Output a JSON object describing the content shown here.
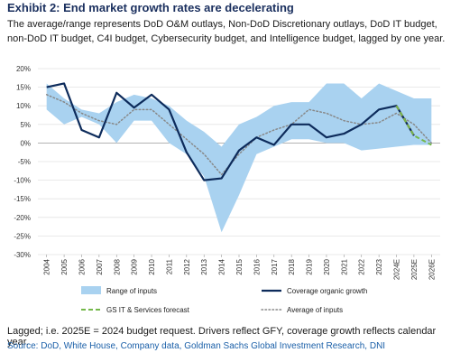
{
  "exhibit": {
    "title": "Exhibit 2: End market growth rates are decelerating",
    "subtitle": "The average/range represents DoD O&M outlays, Non-DoD Discretionary outlays, DoD IT budget, non-DoD IT budget, C4I budget, Cybersecurity budget, and Intelligence budget, lagged by one year.",
    "footnote": "Lagged; i.e. 2025E = 2024 budget request. Drivers reflect GFY, coverage growth reflects calendar year.",
    "source": "Source: DoD, White House, Company data, Goldman Sachs Global Investment Research, DNI"
  },
  "colors": {
    "range": "#a9d2f0",
    "coverage": "#0d2b5b",
    "average": "#888888",
    "gs_forecast": "#74b84a",
    "gs_forecast_red": "#e0463a",
    "title": "#1a2f5e",
    "source": "#1a5fa8"
  },
  "chart_data": {
    "type": "line",
    "categories": [
      "2004",
      "2005",
      "2006",
      "2007",
      "2008",
      "2009",
      "2010",
      "2011",
      "2012",
      "2013",
      "2014",
      "2015",
      "2016",
      "2017",
      "2018",
      "2019",
      "2020",
      "2021",
      "2022",
      "2023",
      "2024E",
      "2025E",
      "2026E"
    ],
    "ylim": [
      -30,
      20
    ],
    "yticks": [
      20,
      15,
      10,
      5,
      0,
      -5,
      -10,
      -15,
      -20,
      -25,
      -30
    ],
    "ytick_labels": [
      "20%",
      "15%",
      "10%",
      "5%",
      "0%",
      "-5%",
      "-10%",
      "-15%",
      "-20%",
      "-25%",
      "-30%"
    ],
    "grid": true,
    "legend_position": "bottom",
    "series": [
      {
        "name": "Range of inputs",
        "kind": "range",
        "upper": [
          16,
          12,
          9,
          8,
          11,
          13,
          12,
          10,
          6,
          3,
          -1,
          5,
          7,
          10,
          11,
          11,
          16,
          16,
          12,
          16,
          14,
          12,
          12
        ],
        "lower": [
          9,
          5,
          7,
          5,
          0,
          6,
          6,
          0,
          -3,
          -9,
          -24,
          -14,
          -3,
          -1,
          1,
          1,
          0,
          0,
          -2,
          -1.5,
          -1,
          -0.5,
          null
        ]
      },
      {
        "name": "Coverage organic growth",
        "kind": "line",
        "values": [
          15,
          16,
          3.5,
          1.5,
          13.5,
          9.5,
          13,
          9,
          -2.5,
          -10,
          -9.5,
          -2,
          1.5,
          -0.5,
          5,
          5,
          1.5,
          2.5,
          5,
          9,
          10,
          2,
          null
        ]
      },
      {
        "name": "GS IT & Services forecast",
        "kind": "dashed",
        "values": [
          null,
          null,
          null,
          null,
          null,
          null,
          null,
          null,
          null,
          null,
          null,
          null,
          null,
          null,
          null,
          null,
          null,
          null,
          null,
          null,
          10,
          2,
          -0.5
        ]
      },
      {
        "name": "Average of inputs",
        "kind": "dotted",
        "values": [
          13,
          11,
          8,
          6,
          5,
          9,
          9,
          5,
          1,
          -3,
          -8.5,
          -3,
          1.5,
          3.5,
          5,
          9,
          8,
          6,
          5,
          5.5,
          8,
          5,
          0
        ]
      }
    ]
  }
}
